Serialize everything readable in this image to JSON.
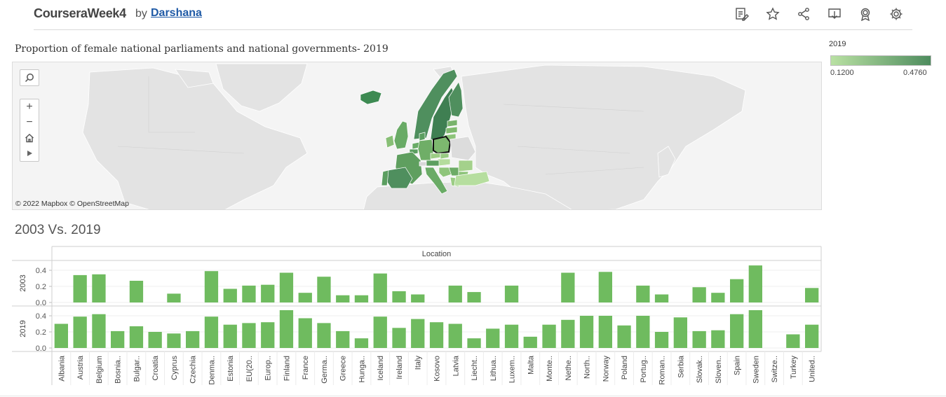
{
  "header": {
    "title": "CourseraWeek4",
    "by": "by",
    "author": "Darshana"
  },
  "toolbar": {
    "icons": [
      "edit-icon",
      "star-icon",
      "share-icon",
      "download-icon",
      "award-icon",
      "gear-icon"
    ]
  },
  "map": {
    "title": "Proportion of female national parliaments and national governments- 2019",
    "attribution": "© 2022 Mapbox  © OpenStreetMap",
    "legend": {
      "title": "2019",
      "min_label": "0.1200",
      "max_label": "0.4760",
      "color_low": "#b9e1a3",
      "color_high": "#4e8c5e"
    },
    "controls": [
      "search-icon",
      "zoom-in-icon",
      "zoom-out-icon",
      "home-icon",
      "play-icon"
    ]
  },
  "chart_data": {
    "type": "bar",
    "title": "2003 Vs. 2019",
    "column_header": "Location",
    "bar_color": "#6fbb5f",
    "categories": [
      "Albania",
      "Austria",
      "Belgium",
      "Bosnia..",
      "Bulgar..",
      "Croatia",
      "Cyprus",
      "Czechia",
      "Denma..",
      "Estonia",
      "EU(20..",
      "Europ..",
      "Finland",
      "France",
      "Germa..",
      "Greece",
      "Hunga..",
      "Iceland",
      "Ireland",
      "Italy",
      "Kosovo",
      "Latvia",
      "Liecht..",
      "Lithua..",
      "Luxem..",
      "Malta",
      "Monte..",
      "Nethe..",
      "North..",
      "Norway",
      "Poland",
      "Portug..",
      "Roman..",
      "Serbia",
      "Slovak..",
      "Sloven..",
      "Spain",
      "Sweden",
      "Switze..",
      "Turkey",
      "United.."
    ],
    "series": [
      {
        "name": "2003",
        "values": [
          null,
          0.34,
          0.35,
          null,
          0.27,
          null,
          0.11,
          null,
          0.39,
          0.17,
          0.21,
          0.22,
          0.37,
          0.12,
          0.32,
          0.09,
          0.09,
          0.36,
          0.14,
          0.1,
          null,
          0.21,
          0.13,
          null,
          0.21,
          null,
          null,
          0.37,
          null,
          0.38,
          null,
          0.21,
          0.1,
          null,
          0.19,
          0.12,
          0.29,
          0.46,
          null,
          null,
          0.18
        ]
      },
      {
        "name": "2019",
        "values": [
          0.3,
          0.39,
          0.42,
          0.21,
          0.27,
          0.2,
          0.18,
          0.21,
          0.39,
          0.29,
          0.31,
          0.32,
          0.47,
          0.37,
          0.31,
          0.21,
          0.12,
          0.39,
          0.25,
          0.36,
          0.32,
          0.3,
          0.12,
          0.24,
          0.29,
          0.14,
          0.29,
          0.35,
          0.4,
          0.4,
          0.28,
          0.4,
          0.2,
          0.38,
          0.21,
          0.22,
          0.42,
          0.47,
          null,
          0.17,
          0.29
        ]
      }
    ],
    "y_ticks": [
      "0.4",
      "0.2",
      "0.0"
    ],
    "ylim": [
      0,
      0.47
    ]
  }
}
